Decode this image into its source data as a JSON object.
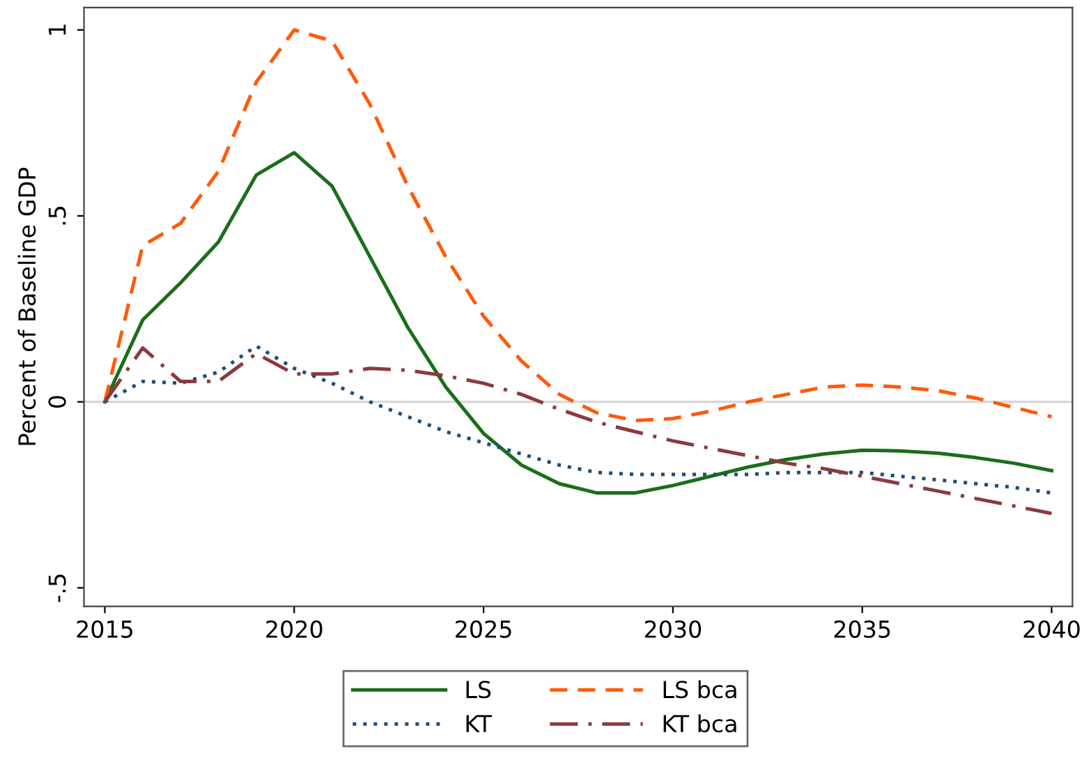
{
  "chart_data": {
    "type": "line",
    "ylabel": "Percent of Baseline GDP",
    "x": [
      2015,
      2016,
      2017,
      2018,
      2019,
      2020,
      2021,
      2022,
      2023,
      2024,
      2025,
      2026,
      2027,
      2028,
      2029,
      2030,
      2031,
      2032,
      2033,
      2034,
      2035,
      2036,
      2037,
      2038,
      2039,
      2040
    ],
    "series": [
      {
        "name": "LS",
        "color": "#1a6e1a",
        "line_style": "solid",
        "values": [
          0,
          0.22,
          0.32,
          0.43,
          0.61,
          0.67,
          0.58,
          0.39,
          0.2,
          0.04,
          -0.085,
          -0.17,
          -0.22,
          -0.245,
          -0.245,
          -0.225,
          -0.2,
          -0.175,
          -0.155,
          -0.14,
          -0.13,
          -0.132,
          -0.138,
          -0.15,
          -0.165,
          -0.185
        ]
      },
      {
        "name": "LS bca",
        "color": "#ff5a0a",
        "line_style": "dashed",
        "values": [
          0,
          0.42,
          0.48,
          0.62,
          0.86,
          1.0,
          0.97,
          0.8,
          0.58,
          0.39,
          0.23,
          0.11,
          0.02,
          -0.03,
          -0.05,
          -0.045,
          -0.025,
          0,
          0.02,
          0.04,
          0.045,
          0.04,
          0.03,
          0.01,
          -0.015,
          -0.04
        ]
      },
      {
        "name": "KT",
        "color": "#1f4e79",
        "line_style": "dotted",
        "values": [
          0,
          0.055,
          0.05,
          0.08,
          0.15,
          0.09,
          0.05,
          0.0,
          -0.04,
          -0.08,
          -0.11,
          -0.14,
          -0.17,
          -0.19,
          -0.195,
          -0.195,
          -0.195,
          -0.195,
          -0.19,
          -0.19,
          -0.19,
          -0.2,
          -0.21,
          -0.22,
          -0.23,
          -0.245
        ]
      },
      {
        "name": "KT bca",
        "color": "#8b3a3e",
        "line_style": "dashdot",
        "values": [
          0,
          0.145,
          0.055,
          0.055,
          0.13,
          0.075,
          0.075,
          0.09,
          0.085,
          0.07,
          0.05,
          0.02,
          -0.02,
          -0.055,
          -0.08,
          -0.105,
          -0.125,
          -0.145,
          -0.165,
          -0.18,
          -0.2,
          -0.22,
          -0.24,
          -0.26,
          -0.28,
          -0.3
        ]
      }
    ],
    "xlim": [
      2014.45,
      2040.55
    ],
    "ylim": [
      -0.55,
      1.06
    ],
    "xticks": [
      2015,
      2020,
      2025,
      2030,
      2035,
      2040
    ],
    "yticks": [
      {
        "value": 1,
        "label": "1"
      },
      {
        "value": 0.5,
        "label": ".5"
      },
      {
        "value": 0,
        "label": "0"
      },
      {
        "value": -0.5,
        "label": "-.5"
      }
    ],
    "ref_lines": [
      {
        "axis": "y",
        "value": 0,
        "color": "#d9d9d9"
      }
    ],
    "grid": false,
    "legend": "bottom",
    "marker": "none"
  }
}
